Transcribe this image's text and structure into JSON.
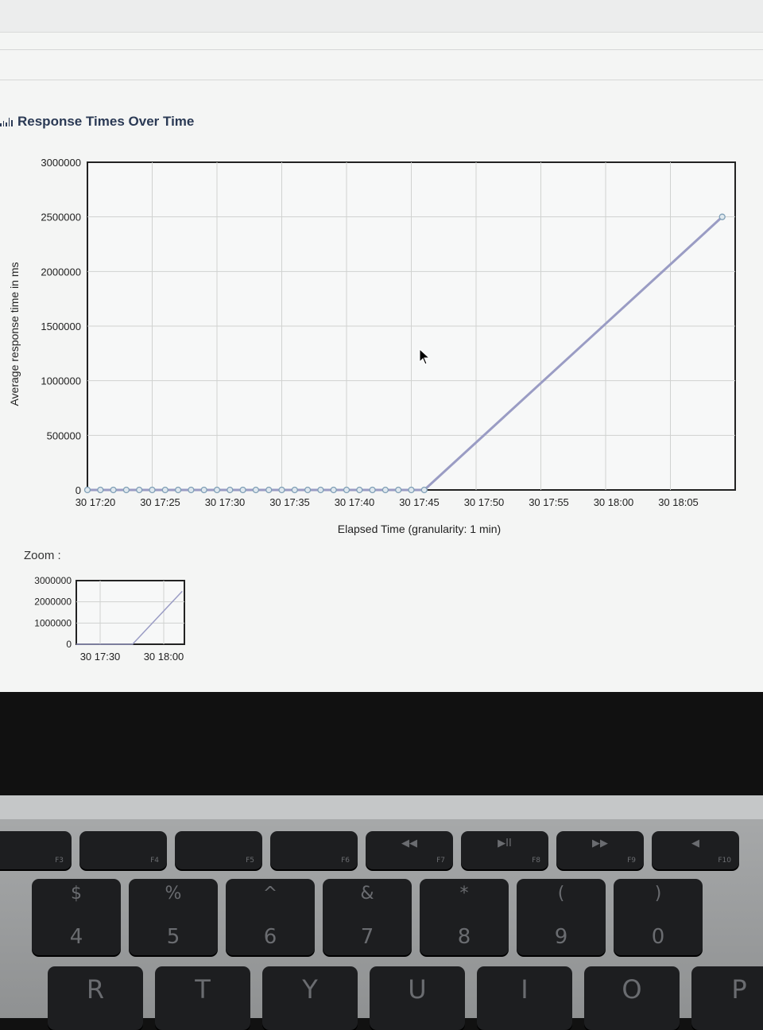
{
  "panel": {
    "title": "Response Times Over Time",
    "icon": "bar-chart-icon"
  },
  "chart_data": {
    "type": "line",
    "ylabel": "Average response time in ms",
    "xlabel": "Elapsed Time (granularity: 1 min)",
    "y_ticks": [
      "3000000",
      "2500000",
      "2000000",
      "1500000",
      "1000000",
      "500000",
      "0"
    ],
    "x_ticks": [
      "30 17:20",
      "30 17:25",
      "30 17:30",
      "30 17:35",
      "30 17:40",
      "30 17:45",
      "30 17:50",
      "30 17:55",
      "30 18:00",
      "30 18:05"
    ],
    "grid": true,
    "series": [
      {
        "color": "#a8a8c8",
        "x_minutes": [
          0,
          1,
          2,
          3,
          4,
          5,
          6,
          7,
          8,
          9,
          10,
          11,
          12,
          13,
          14,
          15,
          16,
          17,
          18,
          19,
          20,
          21,
          22,
          23,
          24,
          25,
          26,
          49
        ],
        "values": [
          0,
          0,
          0,
          0,
          0,
          0,
          0,
          0,
          0,
          0,
          0,
          0,
          0,
          0,
          0,
          0,
          0,
          0,
          0,
          0,
          0,
          0,
          0,
          0,
          0,
          0,
          0,
          2500000
        ]
      }
    ]
  },
  "zoom": {
    "label": "Zoom :",
    "y_ticks": [
      "3000000",
      "2000000",
      "1000000",
      "0"
    ],
    "x_ticks": [
      "30 17:30",
      "30 18:00"
    ]
  },
  "keyboard": {
    "fkeys": [
      {
        "fn": "F3",
        "icon": "mission-control-icon",
        "sym": ""
      },
      {
        "fn": "F4",
        "icon": "launchpad-icon",
        "sym": ""
      },
      {
        "fn": "F5",
        "icon": "keyboard-light-down-icon",
        "sym": ""
      },
      {
        "fn": "F6",
        "icon": "keyboard-light-up-icon",
        "sym": ""
      },
      {
        "fn": "F7",
        "icon": "rewind-icon",
        "sym": "◀◀"
      },
      {
        "fn": "F8",
        "icon": "play-pause-icon",
        "sym": "▶II"
      },
      {
        "fn": "F9",
        "icon": "fast-forward-icon",
        "sym": "▶▶"
      },
      {
        "fn": "F10",
        "icon": "mute-icon",
        "sym": "◀"
      }
    ],
    "numkeys": [
      {
        "top": "$",
        "bot": "4"
      },
      {
        "top": "%",
        "bot": "5"
      },
      {
        "top": "^",
        "bot": "6"
      },
      {
        "top": "&",
        "bot": "7"
      },
      {
        "top": "*",
        "bot": "8"
      },
      {
        "top": "(",
        "bot": "9"
      },
      {
        "top": ")",
        "bot": "0"
      }
    ],
    "letters": [
      "R",
      "T",
      "Y",
      "U",
      "I",
      "O",
      "P"
    ]
  }
}
